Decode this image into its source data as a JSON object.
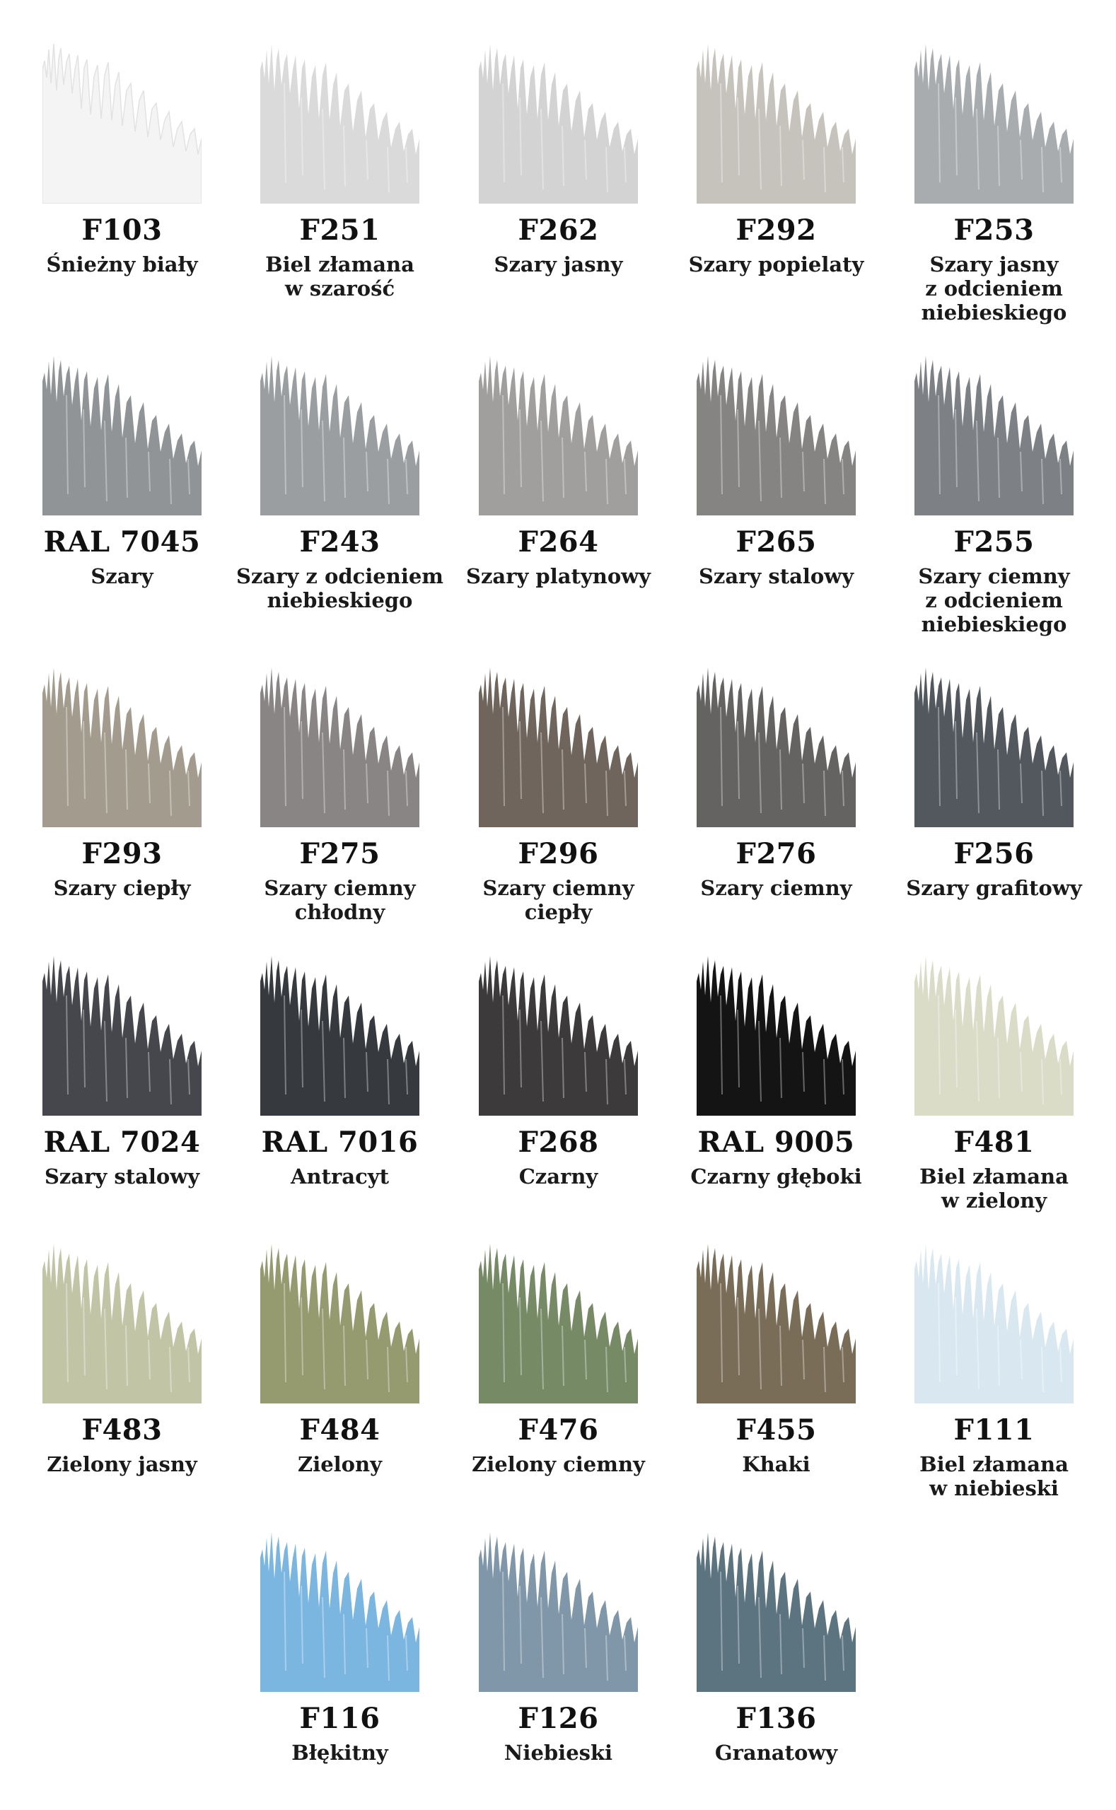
{
  "swatches": [
    {
      "code": "F103",
      "name": "Śnieżny biały",
      "color": "#f4f4f4"
    },
    {
      "code": "F251",
      "name": "Biel złamana\nw szarość",
      "color": "#dadada"
    },
    {
      "code": "F262",
      "name": "Szary jasny",
      "color": "#d3d3d3"
    },
    {
      "code": "F292",
      "name": "Szary popielaty",
      "color": "#c6c3bc"
    },
    {
      "code": "F253",
      "name": "Szary jasny\nz odcieniem\nniebieskiego",
      "color": "#a8acaf"
    },
    {
      "code": "RAL 7045",
      "name": "Szary",
      "color": "#909497"
    },
    {
      "code": "F243",
      "name": "Szary z odcieniem\nniebieskiego",
      "color": "#9b9ea1"
    },
    {
      "code": "F264",
      "name": "Szary platynowy",
      "color": "#a09f9e"
    },
    {
      "code": "F265",
      "name": "Szary stalowy",
      "color": "#858483"
    },
    {
      "code": "F255",
      "name": "Szary ciemny\nz odcieniem\nniebieskiego",
      "color": "#7d8185"
    },
    {
      "code": "F293",
      "name": "Szary ciepły",
      "color": "#a39c8e"
    },
    {
      "code": "F275",
      "name": "Szary ciemny\nchłodny",
      "color": "#888584"
    },
    {
      "code": "F296",
      "name": "Szary ciemny\nciepły",
      "color": "#6f655c"
    },
    {
      "code": "F276",
      "name": "Szary ciemny",
      "color": "#646362"
    },
    {
      "code": "F256",
      "name": "Szary grafitowy",
      "color": "#53575e"
    },
    {
      "code": "RAL 7024",
      "name": "Szary stalowy",
      "color": "#45474d"
    },
    {
      "code": "RAL 7016",
      "name": "Antracyt",
      "color": "#36393d"
    },
    {
      "code": "F268",
      "name": "Czarny",
      "color": "#3c3a3a"
    },
    {
      "code": "RAL 9005",
      "name": "Czarny głęboki",
      "color": "#141415"
    },
    {
      "code": "F481",
      "name": "Biel złamana\nw zielony",
      "color": "#dadcc8"
    },
    {
      "code": "F483",
      "name": "Zielony jasny",
      "color": "#c2c5a5"
    },
    {
      "code": "F484",
      "name": "Zielony",
      "color": "#969a6f"
    },
    {
      "code": "F476",
      "name": "Zielony ciemny",
      "color": "#768a65"
    },
    {
      "code": "F455",
      "name": "Khaki",
      "color": "#7a6d57"
    },
    {
      "code": "F111",
      "name": "Biel złamana\nw niebieski",
      "color": "#d9e8f0"
    },
    {
      "code": "F116",
      "name": "Błękitny",
      "color": "#7bb6e1"
    },
    {
      "code": "F126",
      "name": "Niebieski",
      "color": "#7f97a9"
    },
    {
      "code": "F136",
      "name": "Granatowy",
      "color": "#5b7480"
    }
  ]
}
